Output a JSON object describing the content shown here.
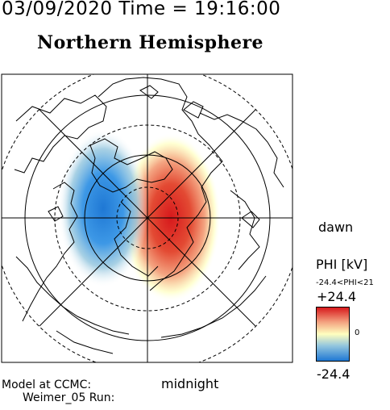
{
  "header": {
    "datetime": "03/09/2020 Time = 19:16:00",
    "title": "Northern Hemisphere"
  },
  "map": {
    "label_dawn": "dawn",
    "label_midnight": "midnight"
  },
  "colorbar": {
    "quantity": "PHI [kV]",
    "range_text": "-24.4<PHI<21",
    "max_label": "+24.4",
    "zero_label": "0",
    "min_label": "-24.4",
    "colors": {
      "positive": "#d7191c",
      "neutral": "#ffffbf",
      "negative": "#1f78d4"
    }
  },
  "footer": {
    "model_line": "Model at CCMC:",
    "run_line": "Weimer_05 Run:"
  }
}
